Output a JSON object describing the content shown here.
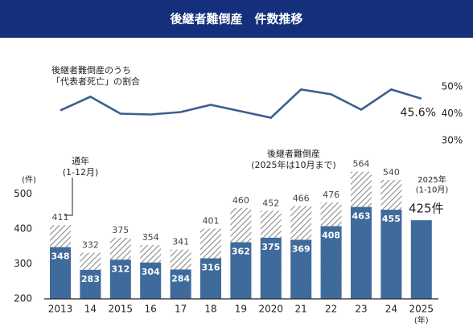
{
  "chart_data": {
    "type": "bar",
    "title": "後継者難倒産　件数推移",
    "categories": [
      "2013",
      "14",
      "2015",
      "16",
      "17",
      "18",
      "19",
      "2020",
      "21",
      "22",
      "23",
      "24",
      "2025"
    ],
    "x_unit": "(年)",
    "y_label": "(件)",
    "ylim": [
      200,
      600
    ],
    "yticks": [
      200,
      300,
      400,
      500
    ],
    "y2lim": [
      30,
      50
    ],
    "y2ticks": [
      {
        "value": 30,
        "label": "30%"
      },
      {
        "value": 40,
        "label": "40%"
      },
      {
        "value": 50,
        "label": "50%"
      }
    ],
    "series": [
      {
        "name": "後継者難倒産のうち\n「代表者死亡」の割合",
        "type": "line",
        "axis": "y2",
        "color": "#3b5f8e",
        "values": [
          41.2,
          46.3,
          40.0,
          39.7,
          40.6,
          43.3,
          40.9,
          38.5,
          49.0,
          47.2,
          41.5,
          49.0,
          45.6
        ],
        "value_labels": [
          null,
          null,
          null,
          null,
          null,
          null,
          null,
          null,
          null,
          null,
          null,
          null,
          "45.6%"
        ]
      },
      {
        "name": "通年\n(1-12月)",
        "type": "bar",
        "pattern": "hatch",
        "color": "#8a8a8a",
        "values": [
          411,
          332,
          375,
          354,
          341,
          401,
          460,
          452,
          466,
          476,
          564,
          540,
          null
        ]
      },
      {
        "name": "後継者難倒産\n(2025年は10月まで)",
        "type": "bar",
        "color": "#3f6b9c",
        "values": [
          348,
          283,
          312,
          304,
          284,
          316,
          362,
          375,
          369,
          408,
          463,
          455,
          425
        ],
        "value_labels": [
          null,
          null,
          null,
          null,
          null,
          null,
          null,
          null,
          null,
          null,
          null,
          null,
          "425件"
        ]
      }
    ],
    "annotations": [
      "2025年\n(1-10月)"
    ]
  }
}
